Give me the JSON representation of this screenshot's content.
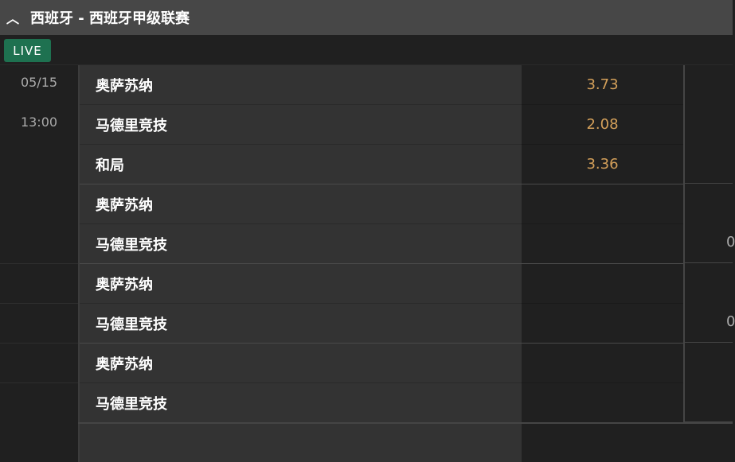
{
  "header": {
    "title": "西班牙 - 西班牙甲级联赛",
    "collapse_icon": "chevron-up-icon"
  },
  "live_badge": "LIVE",
  "match": {
    "date": "05/15",
    "time": "13:00"
  },
  "colors": {
    "live": "#1e7150",
    "odds": "#d4a05a"
  },
  "markets": [
    {
      "rows": [
        {
          "name": "奥萨苏纳",
          "odds": "3.73"
        },
        {
          "name": "马德里竞技",
          "odds": "2.08"
        },
        {
          "name": "和局",
          "odds": "3.36"
        }
      ]
    },
    {
      "rows": [
        {
          "name": "奥萨苏纳",
          "odds": ""
        },
        {
          "name": "马德里竞技",
          "odds": ""
        }
      ],
      "side": "0"
    },
    {
      "rows": [
        {
          "name": "奥萨苏纳",
          "odds": ""
        },
        {
          "name": "马德里竞技",
          "odds": ""
        }
      ],
      "side": "0"
    },
    {
      "rows": [
        {
          "name": "奥萨苏纳",
          "odds": ""
        },
        {
          "name": "马德里竞技",
          "odds": ""
        }
      ]
    }
  ]
}
